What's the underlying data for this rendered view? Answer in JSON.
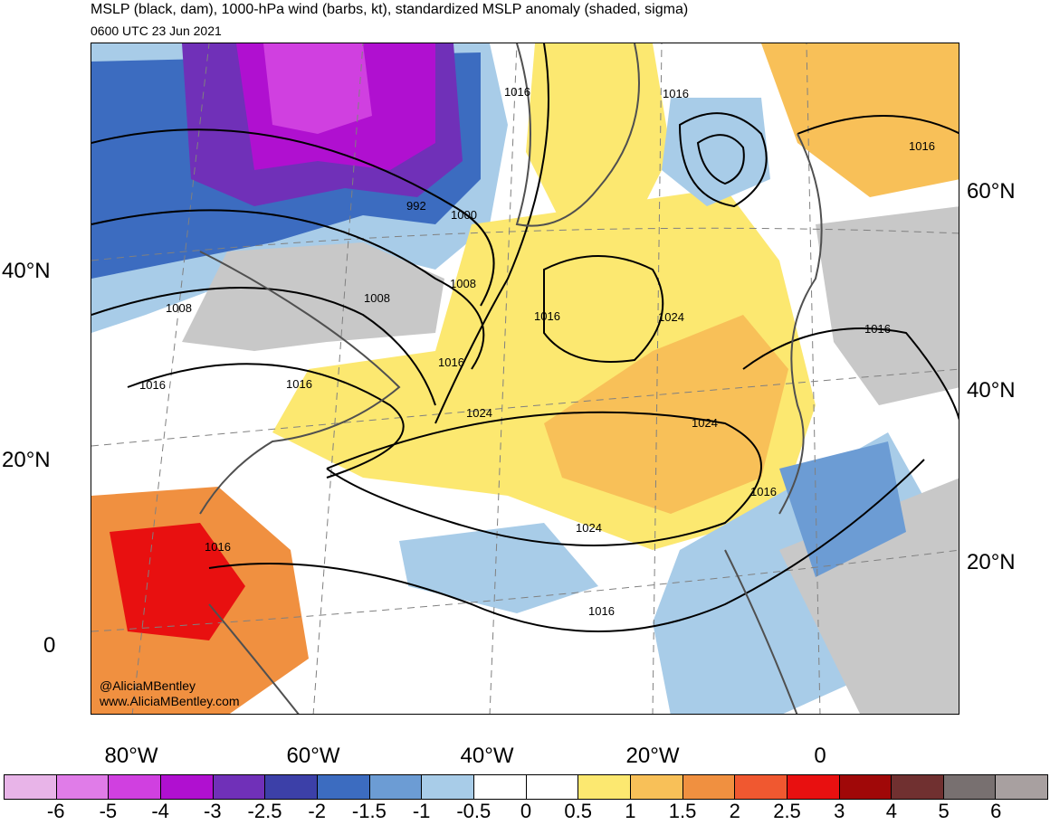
{
  "title": "MSLP (black, dam), 1000-hPa wind (barbs, kt), standardized MSLP anomaly (shaded, sigma)",
  "valid_time": "0600 UTC 23 Jun 2021",
  "credits": [
    "@AliciaMBentley",
    "www.AliciaMBentley.com"
  ],
  "lat_labels_left": [
    "40°N",
    "20°N",
    "0"
  ],
  "lat_labels_right": [
    "60°N",
    "40°N",
    "20°N"
  ],
  "lon_labels": [
    "80°W",
    "60°W",
    "40°W",
    "20°W",
    "0"
  ],
  "contour_labels": [
    "1016",
    "1016",
    "992",
    "1000",
    "1008",
    "1008",
    "1008",
    "1016",
    "1016",
    "1016",
    "1024",
    "1016",
    "1016",
    "1024",
    "1024",
    "1016",
    "1016",
    "1024",
    "1016",
    "1016"
  ],
  "colorbar": {
    "labels": [
      "-6",
      "-5",
      "-4",
      "-3",
      "-2.5",
      "-2",
      "-1.5",
      "-1",
      "-0.5",
      "0",
      "0.5",
      "1",
      "1.5",
      "2",
      "2.5",
      "3",
      "4",
      "5",
      "6"
    ],
    "colors": [
      "#e8b4e8",
      "#e07ce8",
      "#d040e0",
      "#b010d0",
      "#7030b8",
      "#3c40a8",
      "#3c6cc0",
      "#6c9cd4",
      "#a8cce8",
      "#ffffff",
      "#ffffff",
      "#fce870",
      "#f8c058",
      "#f09040",
      "#f05830",
      "#e81010",
      "#a00808",
      "#703030",
      "#787070",
      "#a8a0a0"
    ]
  },
  "chart_data": {
    "type": "map",
    "field": "standardized MSLP anomaly (sigma)",
    "region": "North Atlantic",
    "isobars_dam_labeled": [
      992,
      1000,
      1008,
      1016,
      1024
    ]
  }
}
